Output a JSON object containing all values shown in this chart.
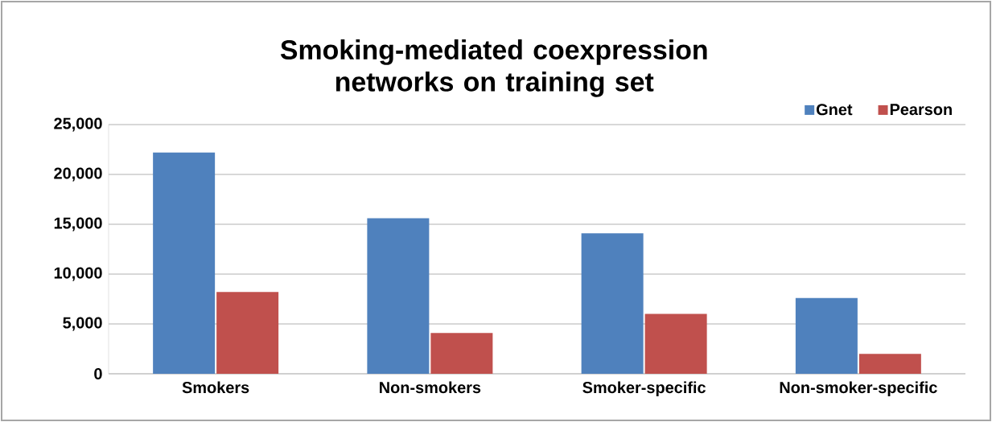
{
  "chart_data": {
    "type": "bar",
    "title": "Smoking-mediated coexpression networks on training set",
    "categories": [
      "Smokers",
      "Non-smokers",
      "Smoker-specific",
      "Non-smoker-specific"
    ],
    "series": [
      {
        "name": "Gnet",
        "color": "#4f81bd",
        "values": [
          22200,
          15600,
          14100,
          7600
        ]
      },
      {
        "name": "Pearson",
        "color": "#c0504d",
        "values": [
          8200,
          4100,
          6000,
          2000
        ]
      }
    ],
    "ylim": [
      0,
      25000
    ],
    "yticks": [
      0,
      {
        "value": 5000,
        "label": "5,000"
      },
      {
        "value": 10000,
        "label": "10,000"
      },
      {
        "value": 15000,
        "label": "15,000"
      },
      {
        "value": 20000,
        "label": "20,000"
      },
      {
        "value": 25000,
        "label": "25,000"
      }
    ],
    "grid": "y",
    "legend": "top right"
  }
}
